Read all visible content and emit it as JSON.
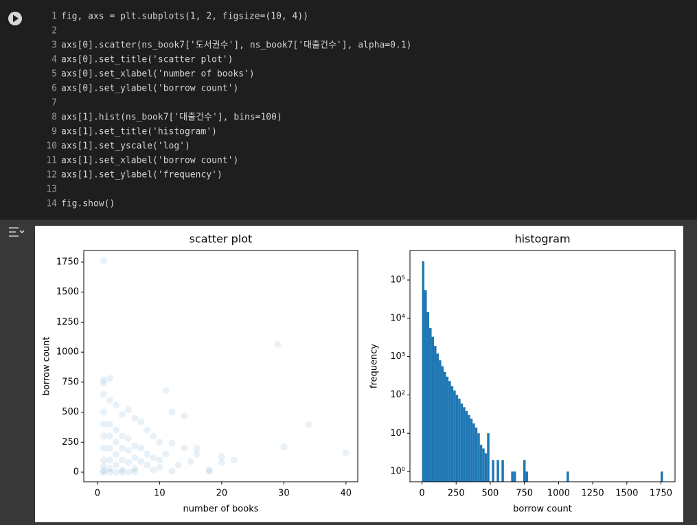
{
  "code": {
    "lines": [
      {
        "number": 1,
        "text": "fig, axs = plt.subplots(1, 2, figsize=(10, 4))"
      },
      {
        "number": 2
      },
      {
        "number": 3,
        "text": "axs[0].scatter(ns_book7['도서권수'], ns_book7['대출건수'], alpha=0.1)"
      },
      {
        "number": 4,
        "text": "axs[0].set_title('scatter plot')"
      },
      {
        "number": 5,
        "text": "axs[0].set_xlabel('number of books')"
      },
      {
        "number": 6,
        "text": "axs[0].set_ylabel('borrow count')"
      },
      {
        "number": 7
      },
      {
        "number": 8,
        "text": "axs[1].hist(ns_book7['대출건수'], bins=100)"
      },
      {
        "number": 9,
        "text": "axs[1].set_title('histogram')"
      },
      {
        "number": 10,
        "text": "axs[1].set_yscale('log')"
      },
      {
        "number": 11,
        "text": "axs[1].set_xlabel('borrow count')"
      },
      {
        "number": 12,
        "text": "axs[1].set_ylabel('frequency')"
      },
      {
        "number": 13
      },
      {
        "number": 14,
        "text": "fig.show()"
      }
    ]
  },
  "chart_data": [
    {
      "type": "scatter",
      "title": "scatter plot",
      "xlabel": "number of books",
      "ylabel": "borrow count",
      "color": "#1f77b4",
      "alpha": 0.1,
      "x": [
        1,
        29,
        1,
        1,
        2,
        11,
        12,
        14,
        34,
        30,
        40,
        22,
        20,
        20,
        18,
        18,
        16,
        16,
        14,
        12,
        10,
        9,
        8,
        7,
        6,
        5,
        4,
        3,
        2,
        1,
        1,
        1,
        1,
        1,
        1,
        1,
        1,
        2,
        2,
        2,
        2,
        2,
        3,
        3,
        3,
        3,
        4,
        4,
        4,
        4,
        5,
        5,
        5,
        6,
        6,
        6,
        7,
        7,
        8,
        8,
        9,
        9,
        10,
        10,
        11,
        13,
        15,
        1,
        2,
        3,
        4,
        5,
        6,
        12
      ],
      "y": [
        1760,
        1065,
        770,
        740,
        780,
        680,
        500,
        470,
        395,
        210,
        160,
        100,
        130,
        80,
        20,
        5,
        200,
        150,
        200,
        240,
        250,
        300,
        350,
        420,
        450,
        520,
        480,
        560,
        600,
        650,
        500,
        400,
        300,
        200,
        100,
        50,
        10,
        400,
        300,
        200,
        100,
        30,
        350,
        250,
        150,
        60,
        300,
        200,
        100,
        20,
        280,
        180,
        80,
        220,
        120,
        30,
        200,
        90,
        150,
        60,
        120,
        20,
        100,
        40,
        150,
        60,
        90,
        0,
        0,
        0,
        0,
        0,
        5,
        10
      ],
      "xlim": [
        -2.2,
        41.9
      ],
      "ylim": [
        -80,
        1847
      ],
      "xticks": [
        0,
        10,
        20,
        30,
        40
      ],
      "yticks": [
        0,
        250,
        500,
        750,
        1000,
        1250,
        1500,
        1750
      ]
    },
    {
      "type": "histogram",
      "title": "histogram",
      "xlabel": "borrow count",
      "ylabel": "frequency",
      "color": "#1f77b4",
      "yscale": "log",
      "bins": [
        0,
        17.65,
        35.3,
        52.95,
        70.6,
        88.25,
        105.9,
        123.55,
        141.2,
        158.85,
        176.5,
        194.15,
        211.8,
        229.45,
        247.1,
        264.75,
        282.4,
        300.05,
        317.7,
        335.35,
        353,
        370.65,
        388.3,
        405.95,
        423.6,
        441.25,
        458.9,
        476.55,
        494.2,
        511.85,
        529.5,
        547.15,
        564.8,
        582.45,
        600.1,
        617.75,
        635.4,
        653.05,
        670.7,
        688.35,
        706,
        723.65,
        741.3,
        758.95,
        776.6,
        794.25,
        811.9,
        829.55,
        847.2,
        864.85,
        882.5,
        900.15,
        917.8,
        935.45,
        953.1,
        970.75,
        988.4,
        1006.05,
        1023.7,
        1041.35,
        1059,
        1076.65,
        1094.3,
        1111.95,
        1129.6,
        1147.25,
        1164.9,
        1182.55,
        1200.2,
        1217.85,
        1235.5,
        1253.15,
        1270.8,
        1288.45,
        1306.1,
        1323.75,
        1341.4,
        1359.05,
        1376.7,
        1394.35,
        1412,
        1429.65,
        1447.3,
        1464.95,
        1482.6,
        1500.25,
        1517.9,
        1535.55,
        1553.2,
        1570.85,
        1588.5,
        1606.15,
        1623.8,
        1641.45,
        1659.1,
        1676.75,
        1694.4,
        1712.05,
        1729.7,
        1747.35,
        1765
      ],
      "counts": [
        310000,
        54000,
        14500,
        5600,
        3300,
        1900,
        1200,
        800,
        560,
        400,
        300,
        230,
        170,
        130,
        100,
        80,
        60,
        48,
        38,
        30,
        24,
        18,
        14,
        10,
        5,
        4,
        3,
        10,
        0,
        2,
        0,
        2,
        0,
        2,
        0,
        0,
        0,
        1,
        1,
        0,
        0,
        0,
        2,
        1,
        0,
        0,
        0,
        0,
        0,
        0,
        0,
        0,
        0,
        0,
        0,
        0,
        0,
        0,
        0,
        0,
        1,
        0,
        0,
        0,
        0,
        0,
        0,
        0,
        0,
        0,
        0,
        0,
        0,
        0,
        0,
        0,
        0,
        0,
        0,
        0,
        0,
        0,
        0,
        0,
        0,
        0,
        0,
        0,
        0,
        0,
        0,
        0,
        0,
        0,
        0,
        0,
        0,
        0,
        0,
        1
      ],
      "xlim": [
        -88,
        1853
      ],
      "ylim": [
        0.54,
        590000
      ],
      "xticks": [
        0,
        250,
        500,
        750,
        1000,
        1250,
        1500,
        1750
      ],
      "yticks": [
        {
          "value": 1,
          "label": "10⁰"
        },
        {
          "value": 10,
          "label": "10¹"
        },
        {
          "value": 100,
          "label": "10²"
        },
        {
          "value": 1000,
          "label": "10³"
        },
        {
          "value": 10000,
          "label": "10⁴"
        },
        {
          "value": 100000,
          "label": "10⁵"
        }
      ]
    }
  ]
}
